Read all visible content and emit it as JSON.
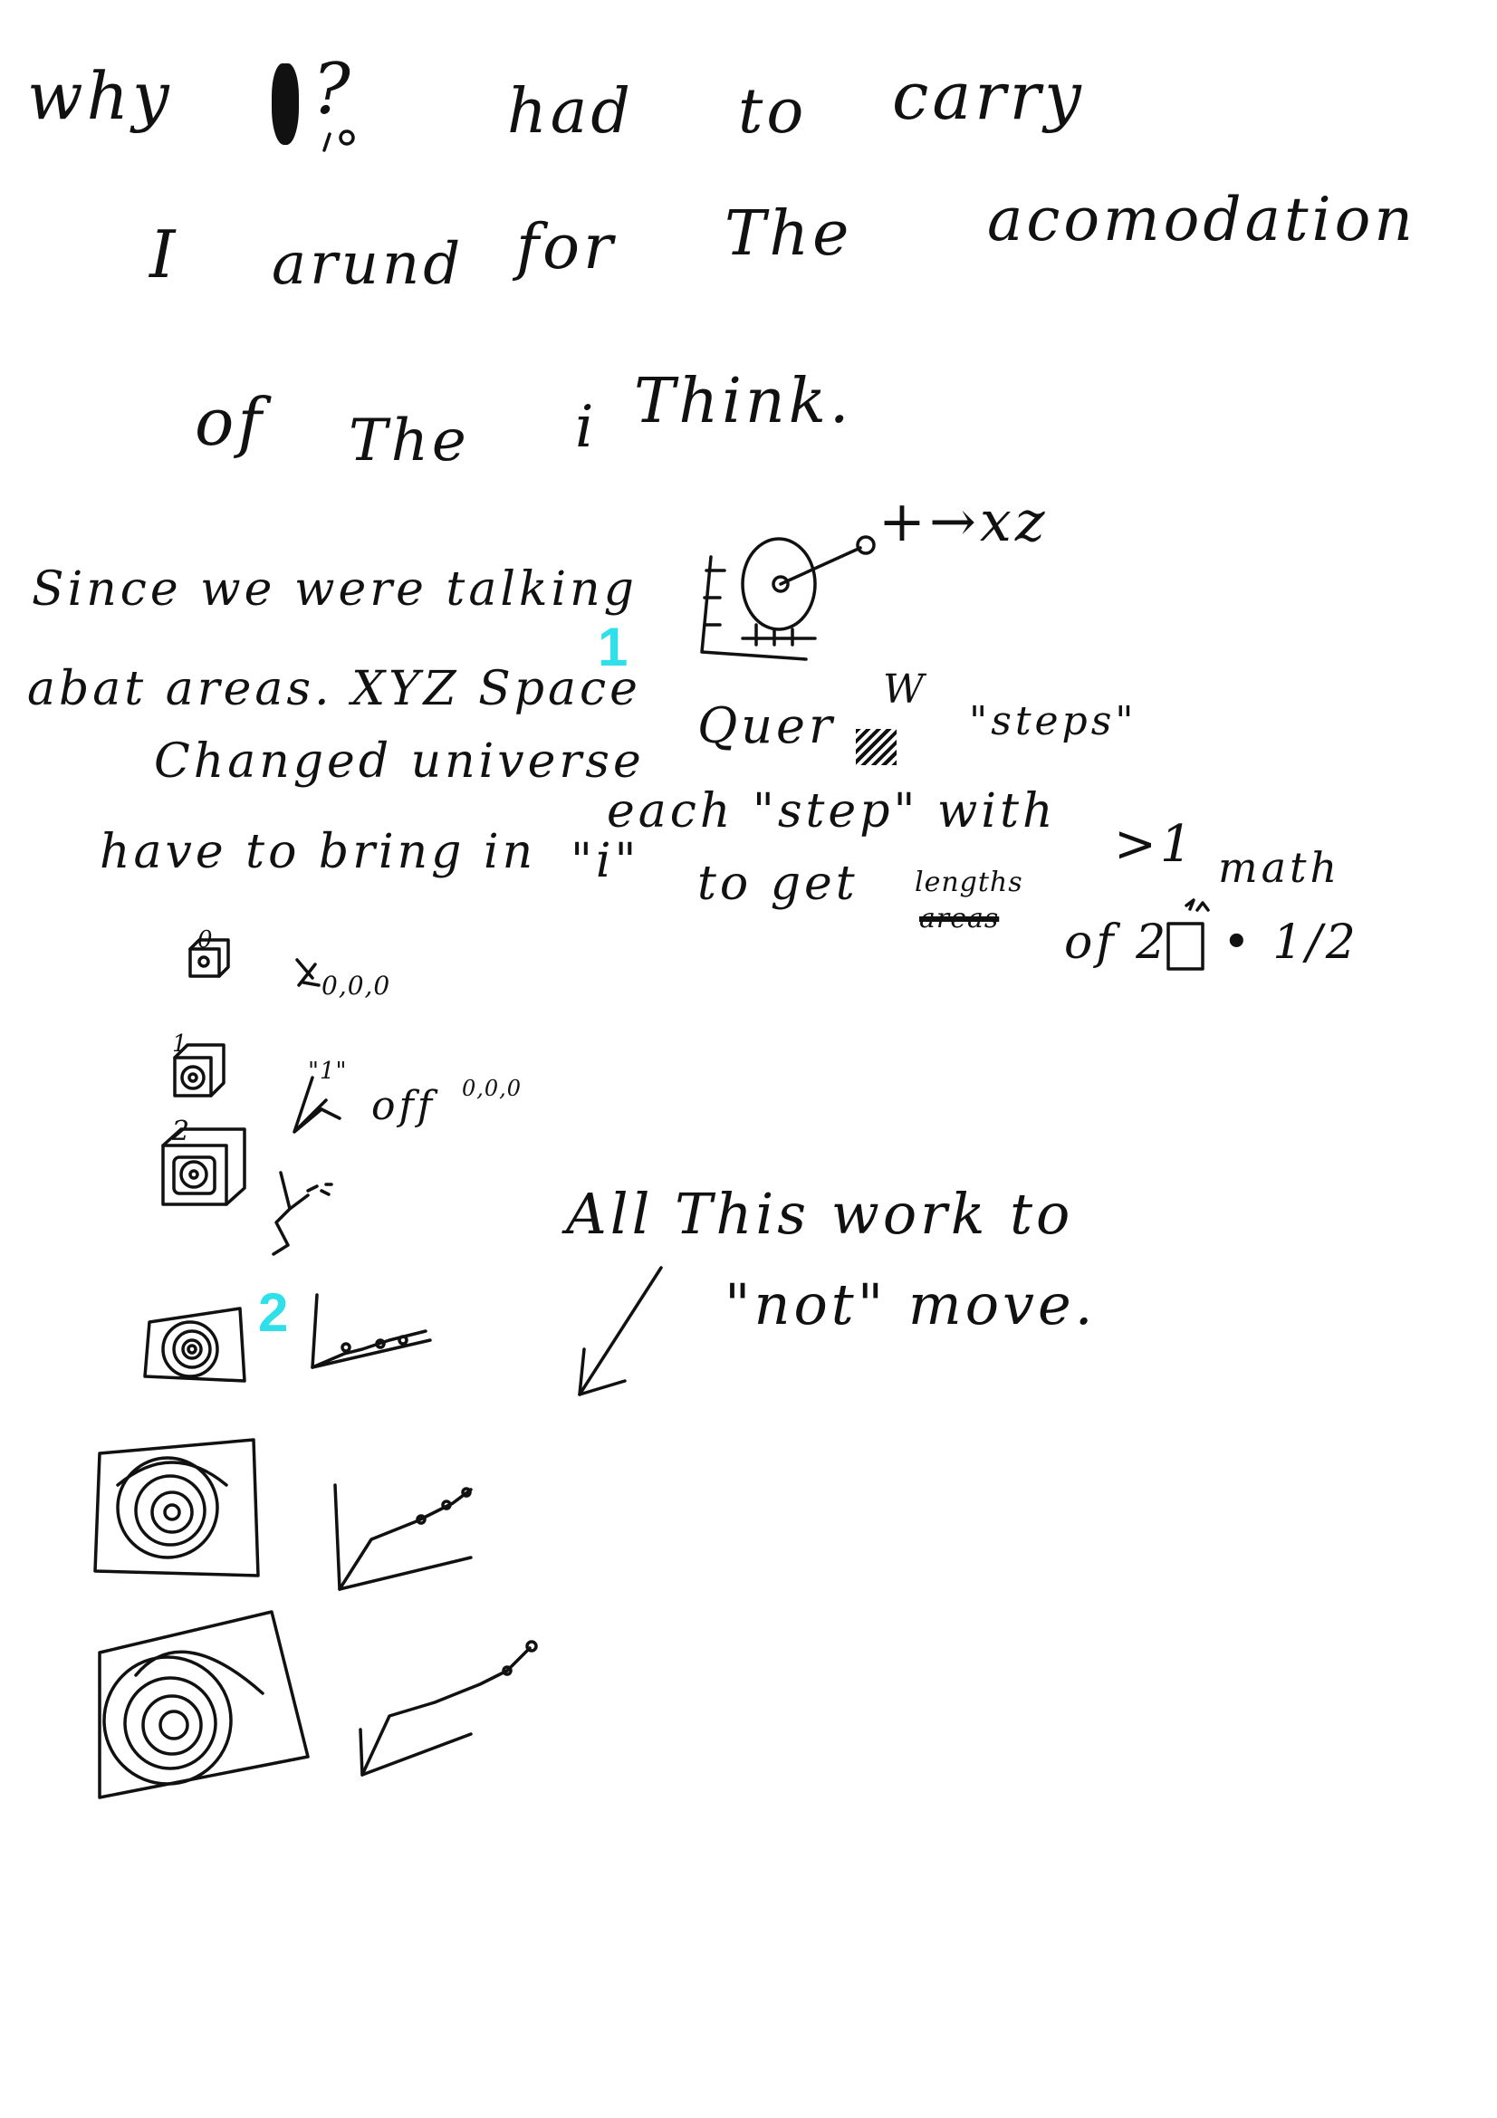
{
  "colors": {
    "ink": "#111111",
    "marker": "#2fe0ea",
    "paper": "#ffffff"
  },
  "markers": [
    "1",
    "2"
  ],
  "lines": {
    "l1a": "why",
    "l1b": "?",
    "l1c": "had",
    "l1d": "to",
    "l1e": "carry",
    "l2a": "I",
    "l2b": "arund",
    "l2c": "for",
    "l2d": "The",
    "l2e": "acomodation",
    "l3a": "of",
    "l3b": "The",
    "l3c": "i",
    "l3d": "Think.",
    "xyz_label": "+→xz",
    "l4": "Since we were talking",
    "l5a": "abat areas. XYZ Space",
    "l5b": "Quer",
    "l5c": "\"steps\"",
    "l6a": "Changed universe",
    "l6b": "each \"step\" with",
    "l6c": ">1",
    "l6d": "math",
    "l7a": "have to bring in",
    "l7b": "\"i\"",
    "l7c": "to get",
    "l7d": "lengths",
    "l7e": "areas",
    "l7f": "of 2",
    "l7g": "• 1/2",
    "d0_label": "0,0,0",
    "d1_label": "\"1\"",
    "d1_off": "off",
    "d1_coords": "0,0,0",
    "d2_label": "2",
    "d0_num": "0",
    "d1_num": "1",
    "side_a": "All This work to",
    "side_b": "\"not\" move."
  }
}
